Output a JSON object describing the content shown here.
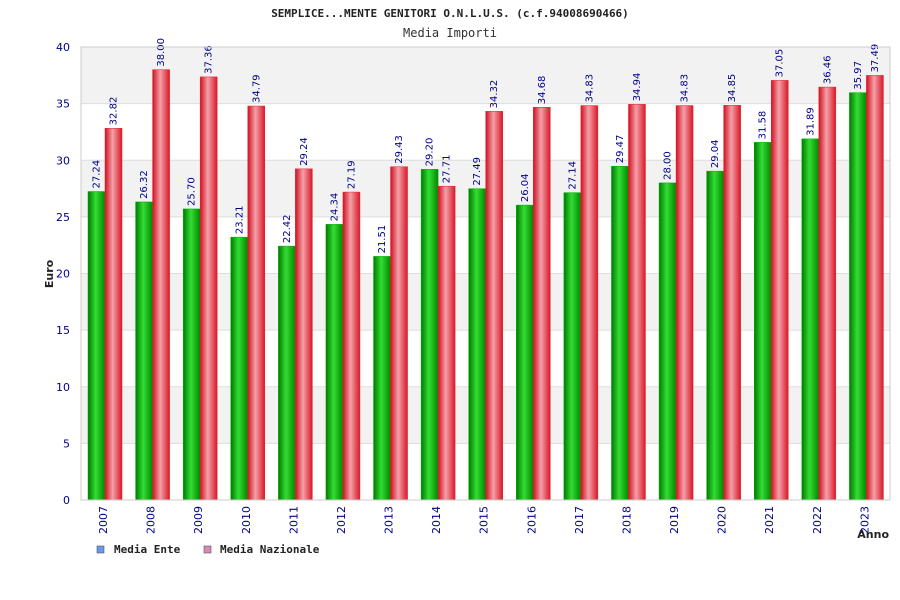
{
  "chart_data": {
    "type": "bar",
    "title": "SEMPLICE...MENTE GENITORI O.N.L.U.S. (c.f.94008690466)",
    "subtitle": "Media Importi",
    "ylabel": "Euro",
    "xlabel": "Anno",
    "ylim": [
      0,
      40
    ],
    "yticks": [
      0,
      5,
      10,
      15,
      20,
      25,
      30,
      35,
      40
    ],
    "grid": true,
    "legend_position": "bottom-left",
    "categories": [
      "2007",
      "2008",
      "2009",
      "2010",
      "2011",
      "2012",
      "2013",
      "2014",
      "2015",
      "2016",
      "2017",
      "2018",
      "2019",
      "2020",
      "2021",
      "2022",
      "2023"
    ],
    "series": [
      {
        "name": "Media Ente",
        "color": "#00b000",
        "legend_color": "#6699ee",
        "values": [
          27.24,
          26.32,
          25.7,
          23.21,
          22.42,
          24.34,
          21.51,
          29.2,
          27.49,
          26.04,
          27.14,
          29.47,
          28.0,
          29.04,
          31.58,
          31.89,
          35.97
        ]
      },
      {
        "name": "Media Nazionale",
        "color": "#e8202a",
        "legend_color": "#dd88bb",
        "values": [
          32.82,
          38.0,
          37.36,
          34.79,
          29.24,
          27.19,
          29.43,
          27.71,
          34.32,
          34.68,
          34.83,
          34.94,
          34.83,
          34.85,
          37.05,
          36.46,
          37.49
        ]
      }
    ]
  }
}
